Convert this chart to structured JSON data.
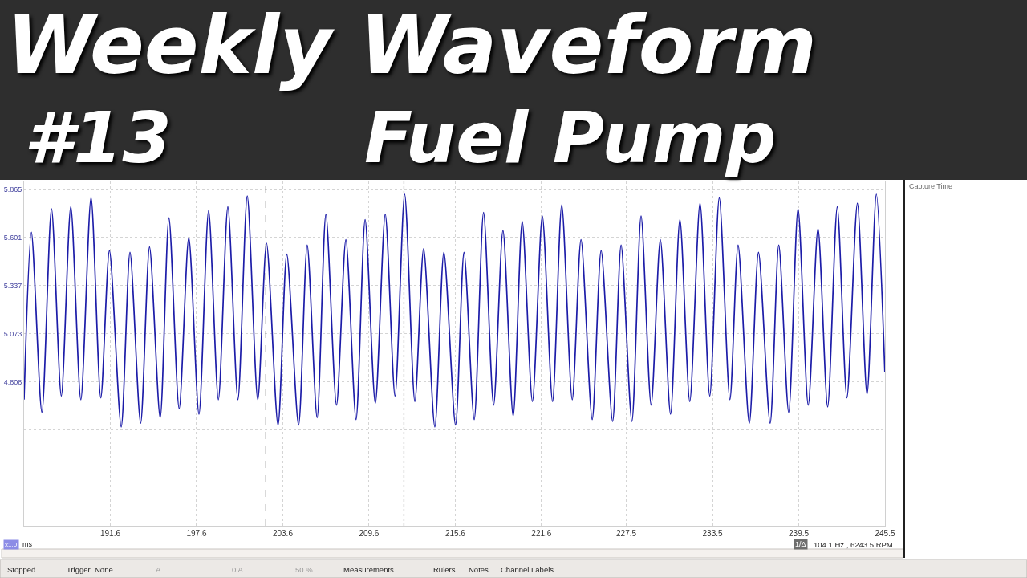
{
  "chart_data": {
    "type": "line",
    "title": "Weekly Waveform",
    "subtitle": "Fuel Pump",
    "xlabel": "ms",
    "annotations": [
      "#13",
      "x1.0",
      "Stopped",
      "Trigger",
      "None",
      "A",
      "0 A",
      "50 %",
      "Measurements",
      "Rulers",
      "Notes",
      "Channel Labels",
      "1/Δ",
      "104.1 Hz , 6243.5 RPM",
      "Capture Time"
    ],
    "x": [
      185.6,
      186.11,
      186.84,
      187.51,
      188.19,
      188.85,
      189.55,
      190.26,
      190.94,
      191.54,
      192.36,
      192.97,
      193.71,
      194.33,
      195.07,
      195.68,
      196.39,
      197.06,
      197.77,
      198.44,
      199.12,
      199.78,
      200.48,
      201.13,
      201.86,
      202.47,
      203.27,
      203.88,
      204.7,
      205.3,
      205.99,
      206.6,
      207.34,
      207.99,
      208.7,
      209.33,
      210.04,
      210.73,
      211.41,
      212.08,
      212.79,
      213.4,
      214.18,
      214.81,
      215.62,
      216.21,
      216.92,
      217.57,
      218.27,
      218.92,
      219.63,
      220.26,
      220.97,
      221.66,
      222.37,
      223.01,
      223.74,
      224.35,
      225.13,
      225.75,
      226.55,
      227.14,
      227.89,
      228.53,
      229.23,
      229.87,
      230.58,
      231.23,
      231.92,
      232.63,
      233.31,
      233.97,
      234.71,
      235.28,
      236.06,
      236.7,
      237.51,
      238.11,
      238.8,
      239.45,
      240.16,
      240.84,
      241.51,
      242.18,
      242.85,
      243.58,
      244.25,
      244.9,
      245.49
    ],
    "values": [
      4.71,
      5.63,
      4.64,
      5.76,
      4.73,
      5.77,
      4.71,
      5.82,
      4.72,
      5.53,
      4.56,
      5.52,
      4.58,
      5.55,
      4.61,
      5.71,
      4.66,
      5.6,
      4.63,
      5.75,
      4.71,
      5.77,
      4.71,
      5.83,
      4.71,
      5.57,
      4.57,
      5.51,
      4.57,
      5.56,
      4.61,
      5.73,
      4.68,
      5.59,
      4.6,
      5.7,
      4.69,
      5.73,
      4.73,
      5.84,
      4.7,
      5.54,
      4.56,
      5.52,
      4.57,
      5.52,
      4.6,
      5.74,
      4.68,
      5.64,
      4.62,
      5.69,
      4.7,
      5.72,
      4.7,
      5.78,
      4.71,
      5.59,
      4.6,
      5.53,
      4.59,
      5.56,
      4.59,
      5.72,
      4.68,
      5.59,
      4.63,
      5.7,
      4.7,
      5.79,
      4.73,
      5.82,
      4.71,
      5.56,
      4.58,
      5.52,
      4.58,
      5.56,
      4.64,
      5.76,
      4.68,
      5.65,
      4.67,
      5.77,
      4.72,
      5.79,
      4.74,
      5.84,
      4.86
    ],
    "color": "#1c1ca8",
    "xlim": [
      185.6,
      245.5
    ],
    "xticks": [
      191.6,
      197.6,
      203.6,
      209.6,
      215.6,
      221.6,
      227.5,
      233.5,
      239.5,
      245.5
    ],
    "ylim": [
      4.016,
      5.91
    ],
    "yticks": [
      {
        "value": 4.28,
        "label": null
      },
      {
        "value": 4.544,
        "label": null
      },
      4.808,
      5.073,
      5.337,
      5.601,
      5.865
    ],
    "ref_lines": [
      {
        "axis": "x",
        "value": 202.42,
        "line_style": "dashed",
        "color": "#808080"
      },
      {
        "axis": "x",
        "value": 212.03,
        "line_style": "dotted",
        "color": "#808080"
      }
    ],
    "grid": true
  }
}
